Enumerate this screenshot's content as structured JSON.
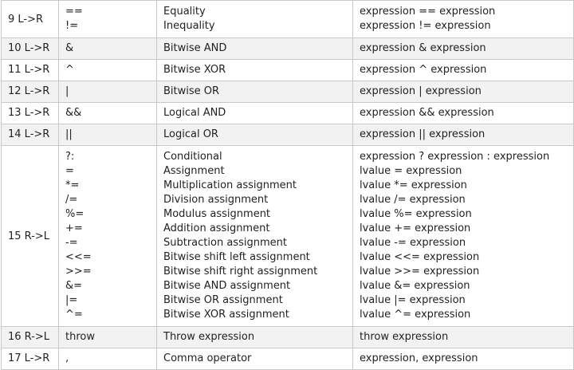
{
  "rows": [
    {
      "precedence": "9 L->R",
      "entries": [
        {
          "op": "==",
          "desc": "Equality",
          "usage": "expression == expression"
        },
        {
          "op": "!=",
          "desc": "Inequality",
          "usage": "expression != expression"
        }
      ]
    },
    {
      "precedence": "10 L->R",
      "entries": [
        {
          "op": "&",
          "desc": "Bitwise AND",
          "usage": "expression & expression"
        }
      ]
    },
    {
      "precedence": "11 L->R",
      "entries": [
        {
          "op": "^",
          "desc": "Bitwise XOR",
          "usage": "expression ^ expression"
        }
      ]
    },
    {
      "precedence": "12 L->R",
      "entries": [
        {
          "op": "|",
          "desc": "Bitwise OR",
          "usage": "expression | expression"
        }
      ]
    },
    {
      "precedence": "13 L->R",
      "entries": [
        {
          "op": "&&",
          "desc": "Logical AND",
          "usage": "expression && expression"
        }
      ]
    },
    {
      "precedence": "14 L->R",
      "entries": [
        {
          "op": "||",
          "desc": "Logical OR",
          "usage": "expression || expression"
        }
      ]
    },
    {
      "precedence": "15 R->L",
      "entries": [
        {
          "op": "?:",
          "desc": "Conditional",
          "usage": "expression ? expression : expression"
        },
        {
          "op": "=",
          "desc": "Assignment",
          "usage": "lvalue = expression"
        },
        {
          "op": "*=",
          "desc": "Multiplication assignment",
          "usage": "lvalue *= expression"
        },
        {
          "op": "/=",
          "desc": "Division assignment",
          "usage": "lvalue /= expression"
        },
        {
          "op": "%=",
          "desc": "Modulus assignment",
          "usage": "lvalue %= expression"
        },
        {
          "op": "+=",
          "desc": "Addition assignment",
          "usage": "lvalue += expression"
        },
        {
          "op": "-=",
          "desc": "Subtraction assignment",
          "usage": "lvalue -= expression"
        },
        {
          "op": "<<=",
          "desc": "Bitwise shift left assignment",
          "usage": "lvalue <<= expression"
        },
        {
          "op": ">>=",
          "desc": "Bitwise shift right assignment",
          "usage": "lvalue >>= expression"
        },
        {
          "op": "&=",
          "desc": "Bitwise AND assignment",
          "usage": "lvalue &= expression"
        },
        {
          "op": "|=",
          "desc": "Bitwise OR assignment",
          "usage": "lvalue |= expression"
        },
        {
          "op": "^=",
          "desc": "Bitwise XOR assignment",
          "usage": "lvalue ^= expression"
        }
      ]
    },
    {
      "precedence": "16 R->L",
      "entries": [
        {
          "op": "throw",
          "desc": "Throw expression",
          "usage": "throw expression"
        }
      ]
    },
    {
      "precedence": "17 L->R",
      "entries": [
        {
          "op": ",",
          "desc": "Comma operator",
          "usage": "expression, expression"
        }
      ]
    }
  ]
}
